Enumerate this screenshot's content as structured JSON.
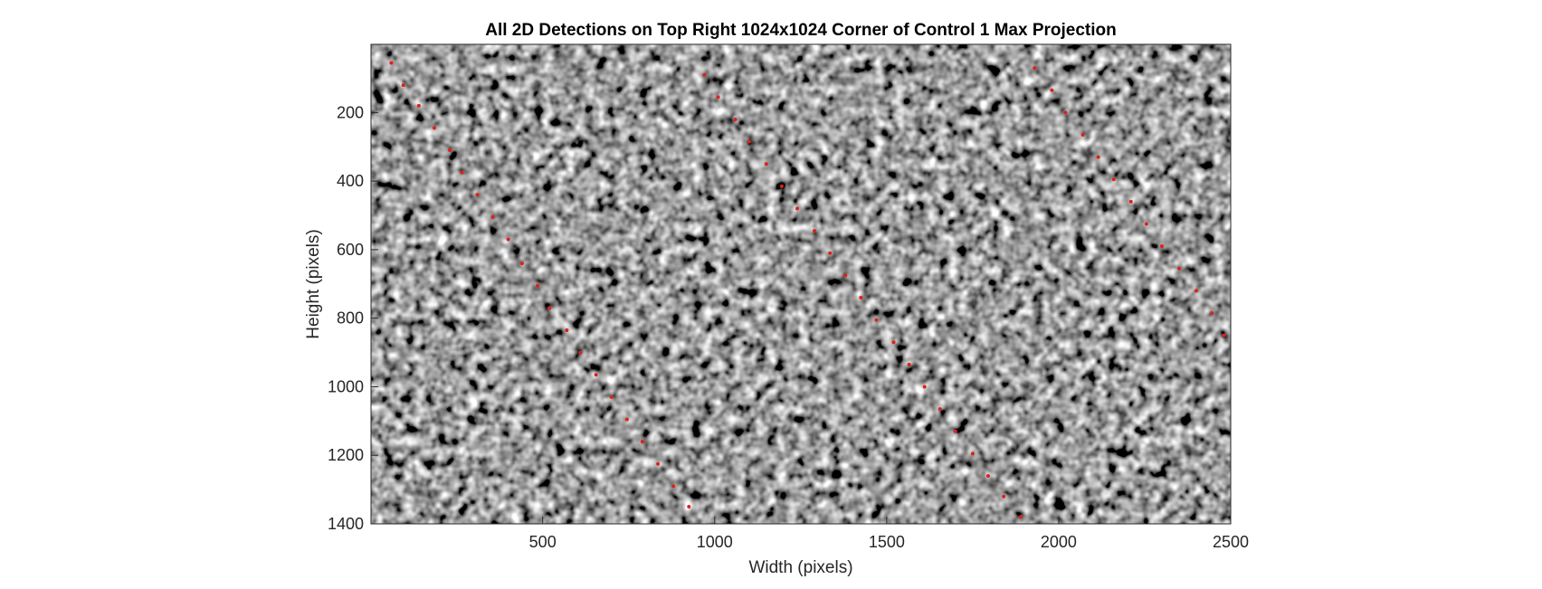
{
  "chart_data": {
    "type": "scatter",
    "title": "All 2D Detections on Top Right 1024x1024 Corner of Control 1 Max Projection",
    "xlabel": "Width (pixels)",
    "ylabel": "Height (pixels)",
    "xlim": [
      1,
      2500
    ],
    "ylim": [
      1,
      1400
    ],
    "y_reversed": true,
    "xticks": [
      500,
      1000,
      1500,
      2000,
      2500
    ],
    "yticks": [
      200,
      400,
      600,
      800,
      1000,
      1200,
      1400
    ],
    "background": "grayscale fluorescence microscopy image of nuclei",
    "marker_color": "#e0201b",
    "grid": false,
    "legend": "none",
    "points_approximate": true,
    "points_note": "Detection markers are dense (approximately 900+); a representative sampled set is listed.",
    "x": [
      60,
      95,
      140,
      185,
      230,
      265,
      310,
      355,
      400,
      440,
      485,
      520,
      570,
      610,
      655,
      700,
      745,
      790,
      835,
      880,
      925,
      970,
      1010,
      1060,
      1100,
      1150,
      1195,
      1240,
      1290,
      1335,
      1380,
      1425,
      1470,
      1520,
      1565,
      1610,
      1655,
      1700,
      1750,
      1795,
      1840,
      1890,
      1930,
      1980,
      2020,
      2070,
      2115,
      2160,
      2210,
      2255,
      2300,
      2350,
      2400,
      2445,
      2480
    ],
    "y": [
      55,
      120,
      180,
      245,
      310,
      375,
      440,
      505,
      570,
      640,
      705,
      770,
      835,
      900,
      965,
      1030,
      1095,
      1160,
      1225,
      1290,
      1350,
      90,
      155,
      220,
      285,
      350,
      415,
      480,
      545,
      610,
      675,
      740,
      805,
      870,
      935,
      1000,
      1065,
      1130,
      1195,
      1260,
      1320,
      1380,
      70,
      135,
      200,
      265,
      330,
      395,
      460,
      525,
      590,
      655,
      720,
      785,
      850
    ]
  }
}
